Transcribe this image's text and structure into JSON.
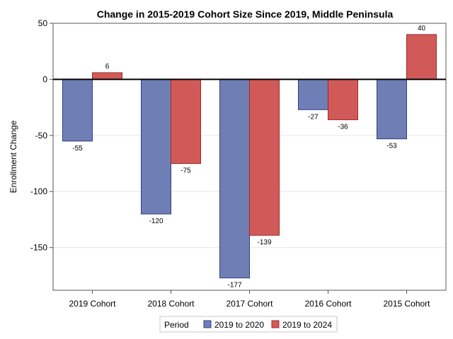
{
  "chart_data": {
    "type": "bar",
    "title": "Change in 2015-2019 Cohort Size Since 2019, Middle Peninsula",
    "xlabel": "",
    "ylabel": "Enrollment Change",
    "categories": [
      "2019 Cohort",
      "2018 Cohort",
      "2017 Cohort",
      "2016 Cohort",
      "2015 Cohort"
    ],
    "series": [
      {
        "name": "2019 to 2020",
        "values": [
          -55,
          -120,
          -177,
          -27,
          -53
        ],
        "color": "#6f7fb6",
        "edge": "#2f3f86"
      },
      {
        "name": "2019 to 2024",
        "values": [
          6,
          -75,
          -139,
          -36,
          40
        ],
        "color": "#d15a58",
        "edge": "#9e2a28"
      }
    ],
    "yticks": [
      50,
      0,
      -50,
      -100,
      -150
    ],
    "ylim": [
      -188,
      50
    ],
    "grid": true,
    "legend": {
      "title": "Period",
      "position": "bottom"
    }
  }
}
